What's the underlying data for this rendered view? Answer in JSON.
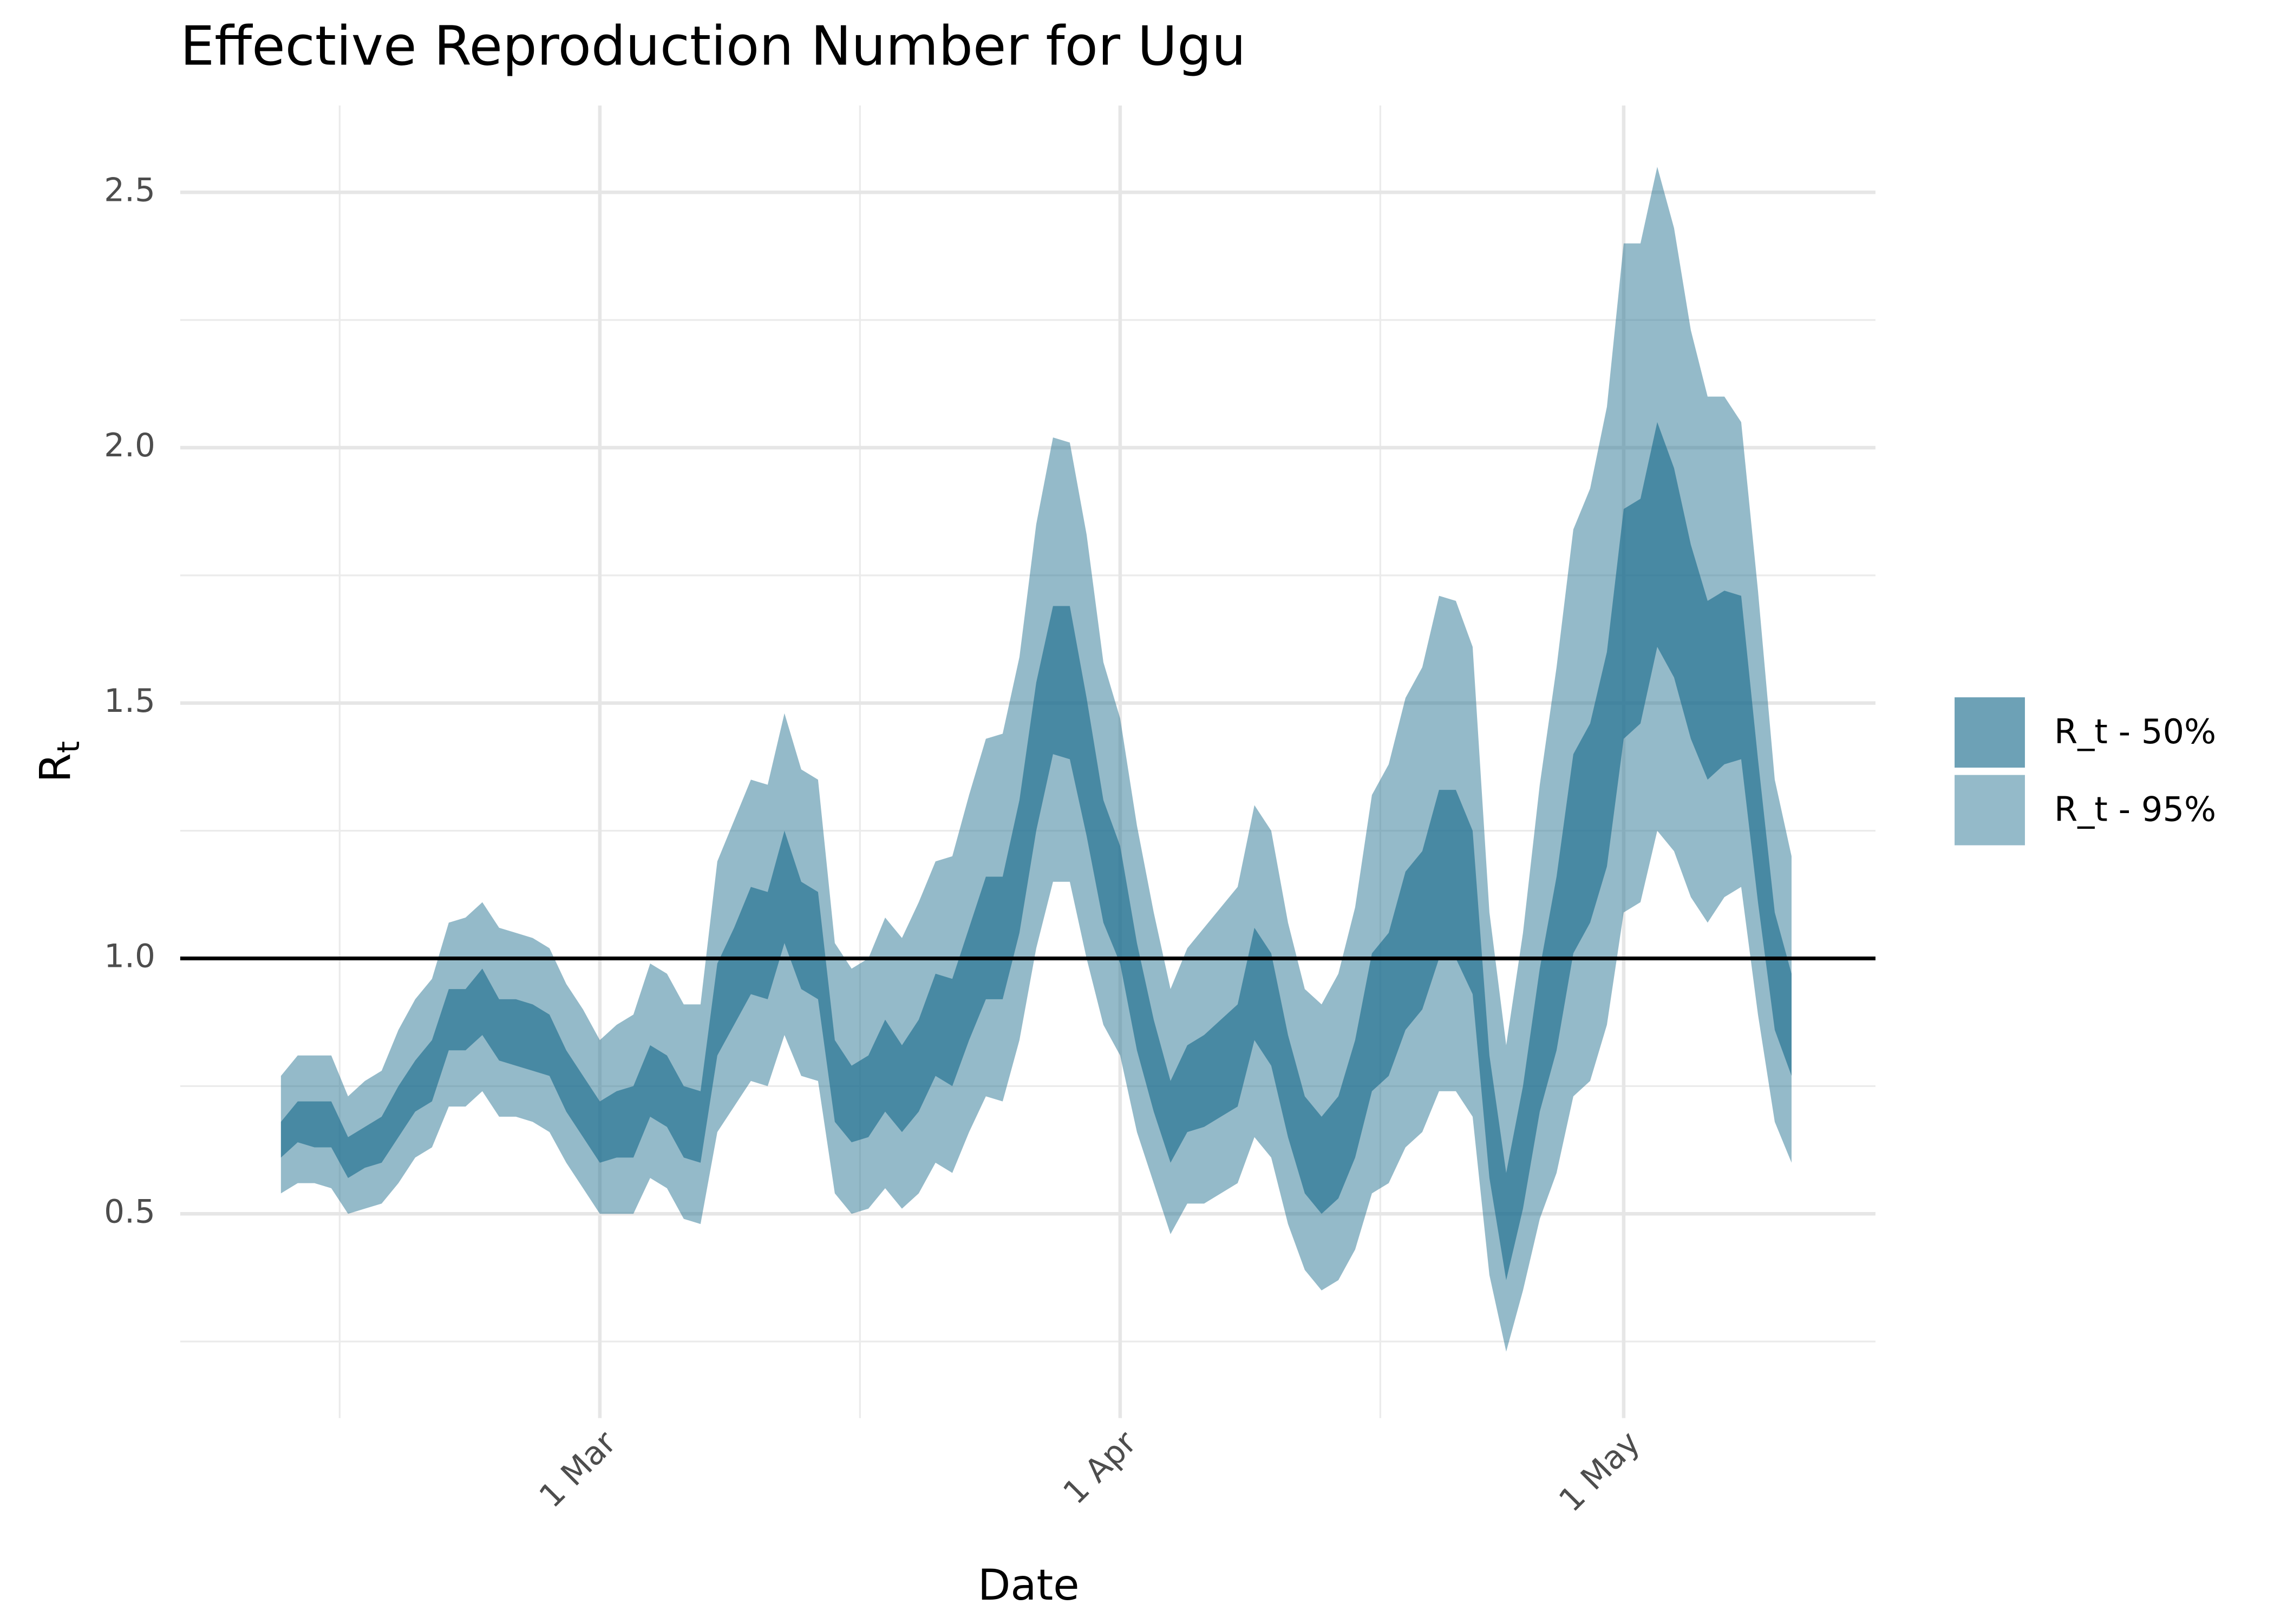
{
  "chart_data": {
    "type": "ribbon",
    "title": "Effective Reproduction Number for Ugu",
    "xlabel": "Date",
    "ylabel": {
      "main": "R",
      "sub": "t"
    },
    "x": [
      "11 Feb",
      "12 Feb",
      "13 Feb",
      "14 Feb",
      "15 Feb",
      "16 Feb",
      "17 Feb",
      "18 Feb",
      "19 Feb",
      "20 Feb",
      "21 Feb",
      "22 Feb",
      "23 Feb",
      "24 Feb",
      "25 Feb",
      "26 Feb",
      "27 Feb",
      "28 Feb",
      "29 Feb",
      "1 Mar",
      "2 Mar",
      "3 Mar",
      "4 Mar",
      "5 Mar",
      "6 Mar",
      "7 Mar",
      "8 Mar",
      "9 Mar",
      "10 Mar",
      "11 Mar",
      "12 Mar",
      "13 Mar",
      "14 Mar",
      "15 Mar",
      "16 Mar",
      "17 Mar",
      "18 Mar",
      "19 Mar",
      "20 Mar",
      "21 Mar",
      "22 Mar",
      "23 Mar",
      "24 Mar",
      "25 Mar",
      "26 Mar",
      "27 Mar",
      "28 Mar",
      "29 Mar",
      "30 Mar",
      "31 Mar",
      "1 Apr",
      "2 Apr",
      "3 Apr",
      "4 Apr",
      "5 Apr",
      "6 Apr",
      "7 Apr",
      "8 Apr",
      "9 Apr",
      "10 Apr",
      "11 Apr",
      "12 Apr",
      "13 Apr",
      "14 Apr",
      "15 Apr",
      "16 Apr",
      "17 Apr",
      "18 Apr",
      "19 Apr",
      "20 Apr",
      "21 Apr",
      "22 Apr",
      "23 Apr",
      "24 Apr",
      "25 Apr",
      "26 Apr",
      "27 Apr",
      "28 Apr",
      "29 Apr",
      "30 Apr",
      "1 May",
      "2 May",
      "3 May",
      "4 May",
      "5 May",
      "6 May",
      "7 May",
      "8 May",
      "9 May",
      "10 May",
      "11 May"
    ],
    "series": [
      {
        "name": "R_t - 95%",
        "color": "#1f6f8f",
        "alpha": 0.48,
        "upper": [
          0.77,
          0.81,
          0.81,
          0.81,
          0.73,
          0.76,
          0.78,
          0.86,
          0.92,
          0.96,
          1.07,
          1.08,
          1.11,
          1.06,
          1.05,
          1.04,
          1.02,
          0.95,
          0.9,
          0.84,
          0.87,
          0.89,
          0.99,
          0.97,
          0.91,
          0.91,
          1.19,
          1.27,
          1.35,
          1.34,
          1.48,
          1.37,
          1.35,
          1.03,
          0.98,
          1.0,
          1.08,
          1.04,
          1.11,
          1.19,
          1.2,
          1.32,
          1.43,
          1.44,
          1.59,
          1.85,
          2.02,
          2.01,
          1.83,
          1.58,
          1.47,
          1.26,
          1.09,
          0.94,
          1.02,
          1.06,
          1.1,
          1.14,
          1.3,
          1.25,
          1.07,
          0.94,
          0.91,
          0.97,
          1.1,
          1.32,
          1.38,
          1.51,
          1.57,
          1.71,
          1.7,
          1.61,
          1.09,
          0.83,
          1.05,
          1.34,
          1.57,
          1.84,
          1.92,
          2.08,
          2.4,
          2.4,
          2.55,
          2.43,
          2.23,
          2.1,
          2.1,
          2.05,
          1.72,
          1.35,
          1.2
        ],
        "lower": [
          0.54,
          0.56,
          0.56,
          0.55,
          0.5,
          0.51,
          0.52,
          0.56,
          0.61,
          0.63,
          0.71,
          0.71,
          0.74,
          0.69,
          0.69,
          0.68,
          0.66,
          0.6,
          0.55,
          0.5,
          0.5,
          0.5,
          0.57,
          0.55,
          0.49,
          0.48,
          0.66,
          0.71,
          0.76,
          0.75,
          0.85,
          0.77,
          0.76,
          0.54,
          0.5,
          0.51,
          0.55,
          0.51,
          0.54,
          0.6,
          0.58,
          0.66,
          0.73,
          0.72,
          0.84,
          1.02,
          1.15,
          1.15,
          1.0,
          0.87,
          0.81,
          0.66,
          0.56,
          0.46,
          0.52,
          0.52,
          0.54,
          0.56,
          0.65,
          0.61,
          0.48,
          0.39,
          0.35,
          0.37,
          0.43,
          0.54,
          0.56,
          0.63,
          0.66,
          0.74,
          0.74,
          0.69,
          0.38,
          0.23,
          0.35,
          0.49,
          0.58,
          0.73,
          0.76,
          0.87,
          1.09,
          1.11,
          1.25,
          1.21,
          1.12,
          1.07,
          1.12,
          1.14,
          0.89,
          0.68,
          0.6
        ]
      },
      {
        "name": "R_t - 50%",
        "color": "#1f6f8f",
        "alpha": 0.65,
        "upper": [
          0.68,
          0.72,
          0.72,
          0.72,
          0.65,
          0.67,
          0.69,
          0.75,
          0.8,
          0.84,
          0.94,
          0.94,
          0.98,
          0.92,
          0.92,
          0.91,
          0.89,
          0.82,
          0.77,
          0.72,
          0.74,
          0.75,
          0.83,
          0.81,
          0.75,
          0.74,
          0.99,
          1.06,
          1.14,
          1.13,
          1.25,
          1.15,
          1.13,
          0.84,
          0.79,
          0.81,
          0.88,
          0.83,
          0.88,
          0.97,
          0.96,
          1.06,
          1.16,
          1.16,
          1.31,
          1.54,
          1.69,
          1.69,
          1.51,
          1.31,
          1.22,
          1.03,
          0.88,
          0.76,
          0.83,
          0.85,
          0.88,
          0.91,
          1.06,
          1.01,
          0.85,
          0.73,
          0.69,
          0.73,
          0.84,
          1.01,
          1.05,
          1.17,
          1.21,
          1.33,
          1.33,
          1.25,
          0.81,
          0.58,
          0.75,
          0.98,
          1.16,
          1.4,
          1.46,
          1.6,
          1.88,
          1.9,
          2.05,
          1.96,
          1.81,
          1.7,
          1.72,
          1.71,
          1.39,
          1.09,
          0.97
        ],
        "lower": [
          0.61,
          0.64,
          0.63,
          0.63,
          0.57,
          0.59,
          0.6,
          0.65,
          0.7,
          0.72,
          0.82,
          0.82,
          0.85,
          0.8,
          0.79,
          0.78,
          0.77,
          0.7,
          0.65,
          0.6,
          0.61,
          0.61,
          0.69,
          0.67,
          0.61,
          0.6,
          0.81,
          0.87,
          0.93,
          0.92,
          1.03,
          0.94,
          0.92,
          0.68,
          0.64,
          0.65,
          0.7,
          0.66,
          0.7,
          0.77,
          0.75,
          0.84,
          0.92,
          0.92,
          1.05,
          1.25,
          1.4,
          1.39,
          1.24,
          1.07,
          0.99,
          0.82,
          0.7,
          0.6,
          0.66,
          0.67,
          0.69,
          0.71,
          0.84,
          0.79,
          0.65,
          0.54,
          0.5,
          0.53,
          0.61,
          0.74,
          0.77,
          0.86,
          0.9,
          1.0,
          1.0,
          0.93,
          0.57,
          0.37,
          0.51,
          0.7,
          0.82,
          1.01,
          1.07,
          1.18,
          1.43,
          1.46,
          1.61,
          1.55,
          1.43,
          1.35,
          1.38,
          1.39,
          1.11,
          0.86,
          0.77
        ]
      }
    ],
    "legend_order": [
      1,
      0
    ],
    "hline": 1,
    "xlim": [
      "5 Feb",
      "16 May"
    ],
    "xticks": [
      "1 Mar",
      "1 Apr",
      "1 May"
    ],
    "ylim": [
      0.1,
      2.67
    ],
    "yticks": [
      {
        "value": 0.5,
        "label": "0.5"
      },
      {
        "value": 1,
        "label": "1.0"
      },
      {
        "value": 1.5,
        "label": "1.5"
      },
      {
        "value": 2,
        "label": "2.0"
      },
      {
        "value": 2.5,
        "label": "2.5"
      }
    ],
    "grid": true,
    "legend": "right"
  }
}
